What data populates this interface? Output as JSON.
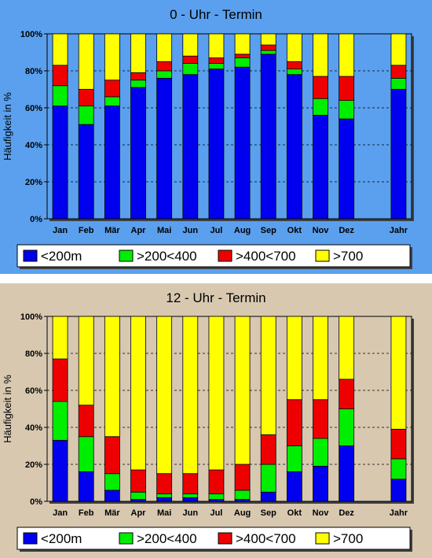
{
  "colors": {
    "lt200": "#0000ee",
    "r200_400": "#00ee00",
    "r400_700": "#ee0000",
    "gt700": "#ffff00",
    "panel1_bg": "#5aa0ee",
    "panel2_bg": "#d8c8b0"
  },
  "legend": [
    "<200m",
    ">200<400",
    ">400<700",
    ">700"
  ],
  "chart_data": [
    {
      "type": "bar",
      "stacked": true,
      "title": "0 - Uhr - Termin",
      "ylabel": "Häufigkeit in %",
      "ylim": [
        0,
        100
      ],
      "yticks": [
        "0%",
        "20%",
        "40%",
        "60%",
        "80%",
        "100%"
      ],
      "grid": "horizontal dashed",
      "legend_position": "bottom",
      "categories": [
        "Jan",
        "Feb",
        "Mär",
        "Apr",
        "Mai",
        "Jun",
        "Jul",
        "Aug",
        "Sep",
        "Okt",
        "Nov",
        "Dez",
        "Jahr"
      ],
      "series": [
        {
          "name": "<200m",
          "values": [
            61,
            51,
            61,
            71,
            76,
            78,
            81,
            82,
            89,
            78,
            56,
            54,
            70
          ]
        },
        {
          "name": ">200<400",
          "values": [
            11,
            10,
            5,
            4,
            4,
            6,
            3,
            5,
            2,
            3,
            9,
            10,
            6
          ]
        },
        {
          "name": ">400<700",
          "values": [
            11,
            9,
            9,
            4,
            5,
            4,
            3,
            2,
            3,
            4,
            12,
            13,
            7
          ]
        },
        {
          "name": ">700",
          "values": [
            17,
            30,
            25,
            21,
            15,
            12,
            13,
            11,
            6,
            15,
            23,
            23,
            17
          ]
        }
      ]
    },
    {
      "type": "bar",
      "stacked": true,
      "title": "12 - Uhr - Termin",
      "ylabel": "Häufigkeit in %",
      "ylim": [
        0,
        100
      ],
      "yticks": [
        "0%",
        "20%",
        "40%",
        "60%",
        "80%",
        "100%"
      ],
      "grid": "horizontal dashed",
      "legend_position": "bottom",
      "categories": [
        "Jan",
        "Feb",
        "Mär",
        "Apr",
        "Mai",
        "Jun",
        "Jul",
        "Aug",
        "Sep",
        "Okt",
        "Nov",
        "Dez",
        "Jahr"
      ],
      "series": [
        {
          "name": "<200m",
          "values": [
            33,
            16,
            6,
            1,
            2,
            2,
            1,
            1,
            5,
            16,
            19,
            30,
            12
          ]
        },
        {
          "name": ">200<400",
          "values": [
            21,
            19,
            9,
            4,
            2,
            2,
            3,
            5,
            15,
            14,
            15,
            20,
            11
          ]
        },
        {
          "name": ">400<700",
          "values": [
            23,
            17,
            20,
            12,
            11,
            11,
            13,
            14,
            16,
            25,
            21,
            16,
            16
          ]
        },
        {
          "name": ">700",
          "values": [
            23,
            48,
            65,
            83,
            85,
            85,
            83,
            80,
            64,
            45,
            45,
            34,
            61
          ]
        }
      ]
    }
  ]
}
